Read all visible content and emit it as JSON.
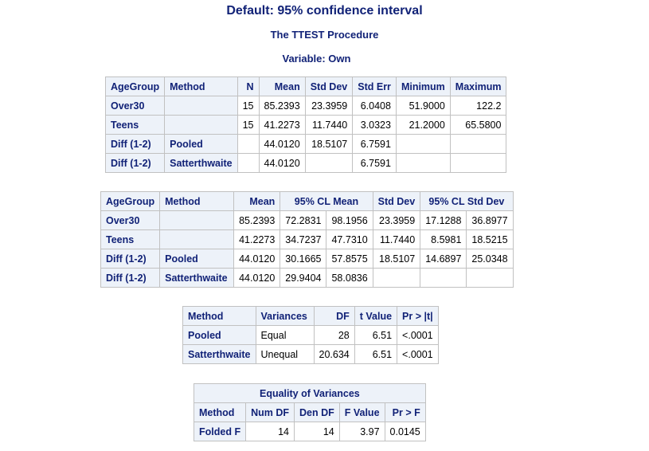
{
  "titles": {
    "main": "Default: 95% confidence interval",
    "procedure": "The TTEST Procedure",
    "variable": "Variable: Own"
  },
  "stats_table": {
    "headers": [
      "AgeGroup",
      "Method",
      "N",
      "Mean",
      "Std Dev",
      "Std Err",
      "Minimum",
      "Maximum"
    ],
    "rows": [
      [
        "Over30",
        "",
        "15",
        "85.2393",
        "23.3959",
        "6.0408",
        "51.9000",
        "122.2"
      ],
      [
        "Teens",
        "",
        "15",
        "41.2273",
        "11.7440",
        "3.0323",
        "21.2000",
        "65.5800"
      ],
      [
        "Diff (1-2)",
        "Pooled",
        "",
        "44.0120",
        "18.5107",
        "6.7591",
        "",
        ""
      ],
      [
        "Diff (1-2)",
        "Satterthwaite",
        "",
        "44.0120",
        "",
        "6.7591",
        "",
        ""
      ]
    ]
  },
  "cl_table": {
    "headers": [
      "AgeGroup",
      "Method",
      "Mean",
      "95% CL Mean",
      "Std Dev",
      "95% CL Std Dev"
    ],
    "rows": [
      [
        "Over30",
        "",
        "85.2393",
        "72.2831",
        "98.1956",
        "23.3959",
        "17.1288",
        "36.8977"
      ],
      [
        "Teens",
        "",
        "41.2273",
        "34.7237",
        "47.7310",
        "11.7440",
        "8.5981",
        "18.5215"
      ],
      [
        "Diff (1-2)",
        "Pooled",
        "44.0120",
        "30.1665",
        "57.8575",
        "18.5107",
        "14.6897",
        "25.0348"
      ],
      [
        "Diff (1-2)",
        "Satterthwaite",
        "44.0120",
        "29.9404",
        "58.0836",
        "",
        "",
        ""
      ]
    ]
  },
  "ttest_table": {
    "headers": [
      "Method",
      "Variances",
      "DF",
      "t Value",
      "Pr > |t|"
    ],
    "rows": [
      [
        "Pooled",
        "Equal",
        "28",
        "6.51",
        "<.0001"
      ],
      [
        "Satterthwaite",
        "Unequal",
        "20.634",
        "6.51",
        "<.0001"
      ]
    ]
  },
  "variance_table": {
    "caption": "Equality of Variances",
    "headers": [
      "Method",
      "Num DF",
      "Den DF",
      "F Value",
      "Pr > F"
    ],
    "rows": [
      [
        "Folded F",
        "14",
        "14",
        "3.97",
        "0.0145"
      ]
    ]
  }
}
